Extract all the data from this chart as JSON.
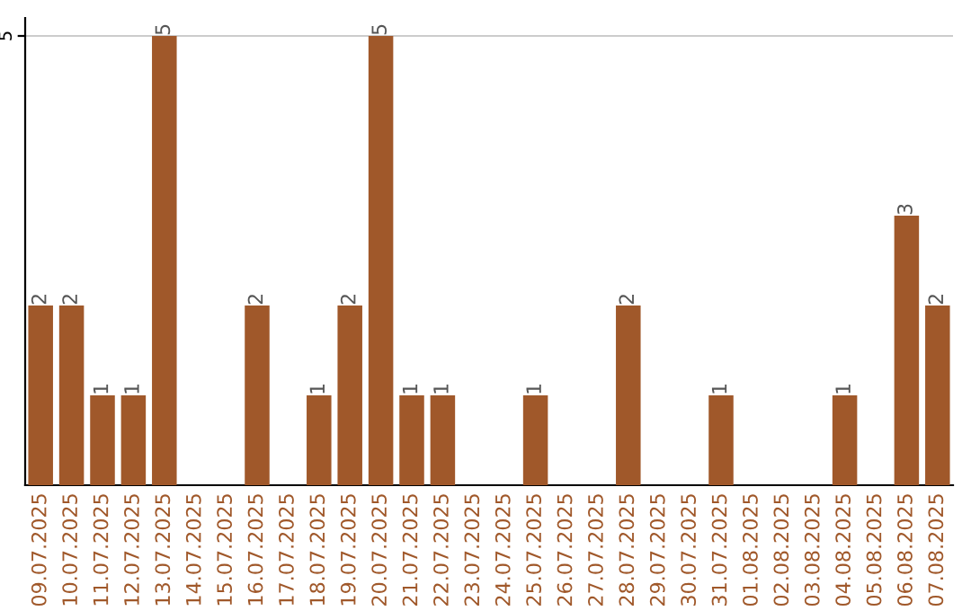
{
  "chart_data": {
    "type": "bar",
    "categories": [
      "09.07.2025",
      "10.07.2025",
      "11.07.2025",
      "12.07.2025",
      "13.07.2025",
      "14.07.2025",
      "15.07.2025",
      "16.07.2025",
      "17.07.2025",
      "18.07.2025",
      "19.07.2025",
      "20.07.2025",
      "21.07.2025",
      "22.07.2025",
      "23.07.2025",
      "24.07.2025",
      "25.07.2025",
      "26.07.2025",
      "27.07.2025",
      "28.07.2025",
      "29.07.2025",
      "30.07.2025",
      "31.07.2025",
      "01.08.2025",
      "02.08.2025",
      "03.08.2025",
      "04.08.2025",
      "05.08.2025",
      "06.08.2025",
      "07.08.2025"
    ],
    "values": [
      2,
      2,
      1,
      1,
      5,
      0,
      0,
      2,
      0,
      1,
      2,
      5,
      1,
      1,
      0,
      0,
      1,
      0,
      0,
      2,
      0,
      0,
      1,
      0,
      0,
      0,
      1,
      0,
      3,
      2
    ],
    "value_labels": [
      "2",
      "2",
      "1",
      "1",
      "5",
      null,
      null,
      "2",
      null,
      "1",
      "2",
      "5",
      "1",
      "1",
      null,
      null,
      "1",
      null,
      null,
      "2",
      null,
      null,
      "1",
      null,
      null,
      null,
      "1",
      null,
      "3",
      "2"
    ],
    "color": "#a0582a",
    "ylim": [
      0,
      5.2
    ],
    "yticks": [
      5
    ],
    "grid": "y",
    "legend": false
  }
}
